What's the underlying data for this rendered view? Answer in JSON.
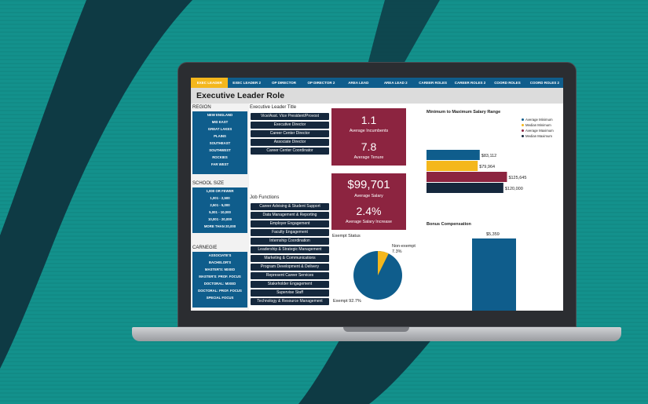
{
  "tabs": [
    "EXEC LEADER",
    "EXEC LEADER 2",
    "OP DIRECTOR",
    "OP DIRECTOR 2",
    "AREA LEAD",
    "AREA LEAD 2",
    "CAREER ROLES",
    "CAREER ROLES 2",
    "COORD ROLES",
    "COORD ROLES 2"
  ],
  "page_title": "Executive Leader Role",
  "region": {
    "label": "REGION",
    "items": [
      "NEW ENGLAND",
      "MID EAST",
      "GREAT LAKES",
      "PLAINS",
      "SOUTHEAST",
      "SOUTHWEST",
      "ROCKIES",
      "FAR WEST"
    ]
  },
  "school_size": {
    "label": "SCHOOL SIZE",
    "items": [
      "1,000 OR FEWER",
      "1,001 - 2,500",
      "2,501 - 5,000",
      "5,001 - 10,000",
      "10,001 - 20,000",
      "MORE THAN 20,000"
    ]
  },
  "carnegie": {
    "label": "CARNEGIE",
    "items": [
      "ASSOCIATE'S",
      "BACHELOR'S",
      "MASTER'S: MIXED",
      "MASTER'S: PROF. FOCUS",
      "DOCTORAL: MIXED",
      "DOCTORAL: PROF. FOCUS",
      "SPECIAL FOCUS"
    ]
  },
  "exec_title": {
    "label": "Executive Leader Title",
    "items": [
      "Vice/Asst. Vice President/Provost",
      "Executive Director",
      "Career Center Director",
      "Associate Director",
      "Career Center Coordinator"
    ]
  },
  "job_functions": {
    "label": "Job Functions",
    "items": [
      "Career Advising & Student Support",
      "Data Management & Reporting",
      "Employer Engagement",
      "Faculty Engagement",
      "Internship Coordination",
      "Leadership & Strategic Management",
      "Marketing & Communications",
      "Program Development & Delivery",
      "Represent Career Services",
      "Stakeholder Engagement",
      "Supervise Staff",
      "Technology & Resource Management"
    ]
  },
  "kpis": {
    "avg_incumbents_value": "1.1",
    "avg_incumbents_label": "Average Incumbents",
    "avg_tenure_value": "7.8",
    "avg_tenure_label": "Average Tenure",
    "avg_salary_value": "$99,701",
    "avg_salary_label": "Average Salary",
    "avg_increase_value": "2.4%",
    "avg_increase_label": "Average Salary Increase"
  },
  "exempt": {
    "title": "Exempt Status",
    "nonexempt_label": "Non-exempt",
    "nonexempt_pct": "7.3%",
    "exempt_label": "Exempt 92.7%",
    "nonexempt_fraction": 0.073
  },
  "salary_range": {
    "title": "Minimum to Maximum Salary Range",
    "legend": [
      "Average Minimum",
      "Median Minimum",
      "Average Maximum",
      "Median Maximum"
    ],
    "colors": [
      "#0f5d8c",
      "#f4b71c",
      "#8c2440",
      "#15283d"
    ],
    "values": [
      83112,
      79964,
      125645,
      120000
    ],
    "labels": [
      "$83,112",
      "$79,964",
      "$125,645",
      "$120,000"
    ]
  },
  "bonus": {
    "title": "Bonus Compensation",
    "value_label": "$5,359",
    "color": "#0f5d8c"
  },
  "colors": {
    "background": "#13918c",
    "swoosh": "#0e3a44",
    "nav": "#0f5d8c",
    "accent": "#f4b71c",
    "kpi": "#8c2440"
  }
}
